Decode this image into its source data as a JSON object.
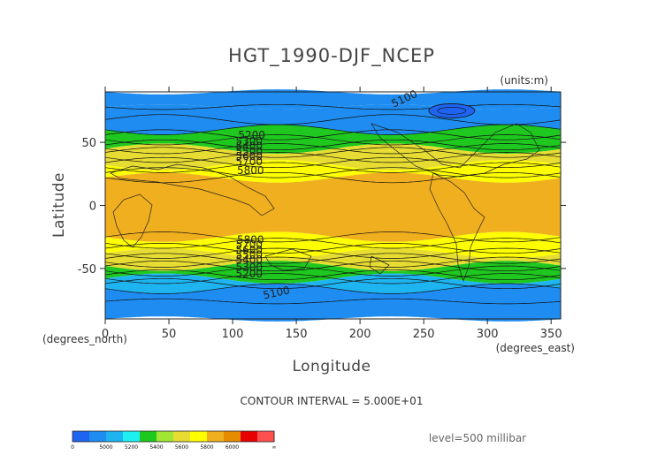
{
  "chart_data": {
    "type": "contour",
    "title": "HGT_1990-DJF_NCEP",
    "units_label": "(units:m)",
    "xlabel": "Longitude",
    "ylabel": "Latitude",
    "x_unit_label": "(degrees_east)",
    "y_unit_label": "(degrees_north)",
    "xlim": [
      0,
      357.5
    ],
    "ylim": [
      -90,
      90
    ],
    "x_ticks": [
      0,
      50,
      100,
      150,
      200,
      250,
      300,
      350
    ],
    "y_ticks": [
      50,
      0,
      -50
    ],
    "contour_interval_text": "CONTOUR INTERVAL = 5.000E+01",
    "level_text": "level=500 millibar",
    "bands": [
      {
        "from_lat": 90,
        "to_lat": 78,
        "level": 5200
      },
      {
        "from_lat": 78,
        "to_lat": 60,
        "level": 5200
      },
      {
        "from_lat": 60,
        "to_lat": 45,
        "level": 5500
      },
      {
        "from_lat": 45,
        "to_lat": 32,
        "level": 5700
      },
      {
        "from_lat": 32,
        "to_lat": 22,
        "level": 5800
      },
      {
        "from_lat": 22,
        "to_lat": -25,
        "level": 5900
      },
      {
        "from_lat": -25,
        "to_lat": -38,
        "level": 5800
      },
      {
        "from_lat": -38,
        "to_lat": -48,
        "level": 5700
      },
      {
        "from_lat": -48,
        "to_lat": -58,
        "level": 5500
      },
      {
        "from_lat": -58,
        "to_lat": -66,
        "level": 5300
      },
      {
        "from_lat": -66,
        "to_lat": -90,
        "level": 5200
      }
    ],
    "low_center": {
      "lon": 272,
      "lat": 75,
      "level": 4900
    },
    "contour_labels": [
      {
        "text": "5100",
        "lon": 236,
        "lat": 82,
        "rotate": -25
      },
      {
        "text": "5100",
        "lon": 135,
        "lat": -72,
        "rotate": -12
      },
      {
        "text": "5200",
        "lon": 115,
        "lat": 53,
        "rotate": 0
      },
      {
        "text": "5300",
        "lon": 113,
        "lat": 48,
        "rotate": 0
      },
      {
        "text": "5400",
        "lon": 113,
        "lat": 44,
        "rotate": 0
      },
      {
        "text": "5500",
        "lon": 113,
        "lat": 40,
        "rotate": 0
      },
      {
        "text": "5600",
        "lon": 113,
        "lat": 36,
        "rotate": 0
      },
      {
        "text": "5700",
        "lon": 113,
        "lat": 32,
        "rotate": 0
      },
      {
        "text": "5800",
        "lon": 114,
        "lat": 25,
        "rotate": 0
      },
      {
        "text": "5800",
        "lon": 114,
        "lat": -30,
        "rotate": 0
      },
      {
        "text": "5700",
        "lon": 113,
        "lat": -34,
        "rotate": 0
      },
      {
        "text": "5600",
        "lon": 113,
        "lat": -38,
        "rotate": 0
      },
      {
        "text": "5500",
        "lon": 113,
        "lat": -42,
        "rotate": 0
      },
      {
        "text": "5400",
        "lon": 113,
        "lat": -46,
        "rotate": 0
      },
      {
        "text": "5300",
        "lon": 113,
        "lat": -52,
        "rotate": 0
      },
      {
        "text": "5200",
        "lon": 113,
        "lat": -57,
        "rotate": 0
      }
    ],
    "colorbar": {
      "labels": [
        "0",
        "5000",
        "5200",
        "5400",
        "5600",
        "5800",
        "6000",
        "∞"
      ],
      "colors": [
        "#1e64f0",
        "#1e8cf0",
        "#1eb4f0",
        "#1ef0f0",
        "#1ec81e",
        "#a0e632",
        "#e6dc32",
        "#ffff00",
        "#f0af1e",
        "#e68c00",
        "#e60000",
        "#ff5050"
      ]
    },
    "level_colors": {
      "4900": "#1e64f0",
      "5200": "#1e8cf0",
      "5300": "#1eb4f0",
      "5500": "#1ec81e",
      "5700": "#e6dc32",
      "5800": "#ffff00",
      "5900": "#f0af1e"
    }
  }
}
